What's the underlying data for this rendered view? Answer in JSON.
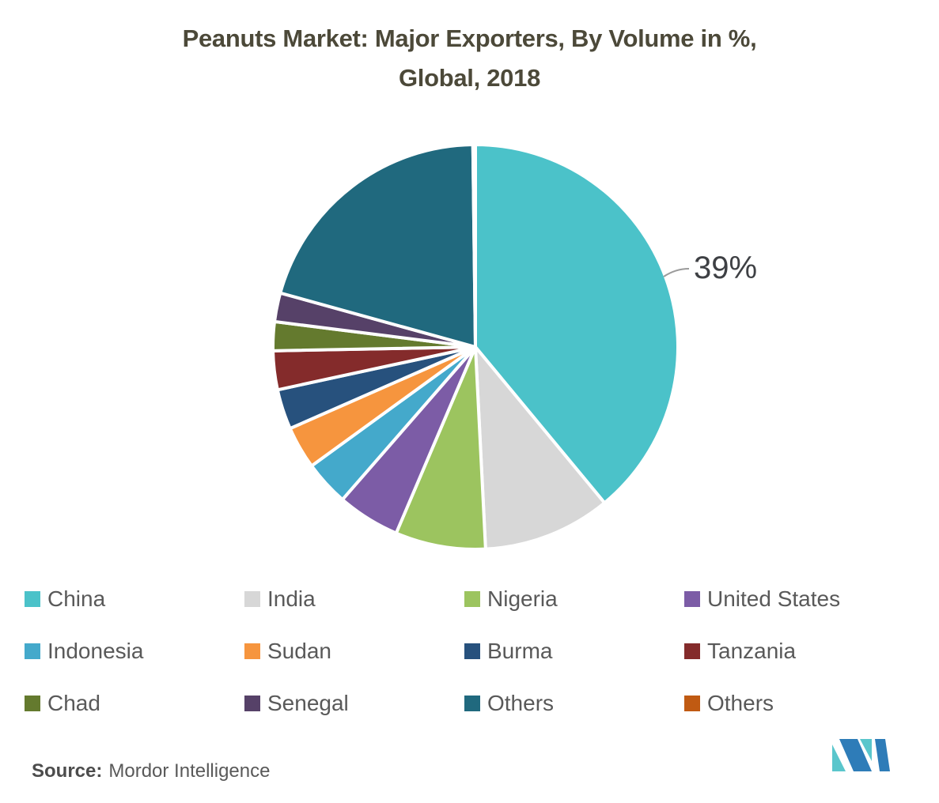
{
  "title": {
    "line1": "Peanuts Market: Major Exporters, By Volume in %,",
    "line2": "Global, 2018"
  },
  "chart_data": {
    "type": "pie",
    "title": "Peanuts Market: Major Exporters, By Volume in %, Global, 2018",
    "start_angle_deg": 0,
    "direction": "clockwise",
    "labels": [
      "China",
      "India",
      "Nigeria",
      "United States",
      "Indonesia",
      "Sudan",
      "Burma",
      "Tanzania",
      "Chad",
      "Senegal",
      "Others",
      "Others"
    ],
    "values": [
      39,
      10.2,
      7.2,
      5,
      3.6,
      3.4,
      3.2,
      3.1,
      2.3,
      2.3,
      20.5,
      0.2
    ],
    "colors": [
      "#4BC2C9",
      "#D7D7D7",
      "#9CC45F",
      "#7C5CA6",
      "#44A9CB",
      "#F6953E",
      "#27517D",
      "#842B2B",
      "#647A2E",
      "#564168",
      "#20697E",
      "#C05A12"
    ],
    "data_labels": [
      {
        "series": "China",
        "text": "39%"
      }
    ],
    "legend_position": "bottom",
    "legend_columns": 4,
    "slice_border_color": "#ffffff"
  },
  "source": {
    "label": "Source:",
    "text": "Mordor Intelligence"
  },
  "logo": {
    "alt": "mordor-intelligence-logo",
    "teal": "#5AC6CC",
    "blue": "#2E7CB8"
  }
}
